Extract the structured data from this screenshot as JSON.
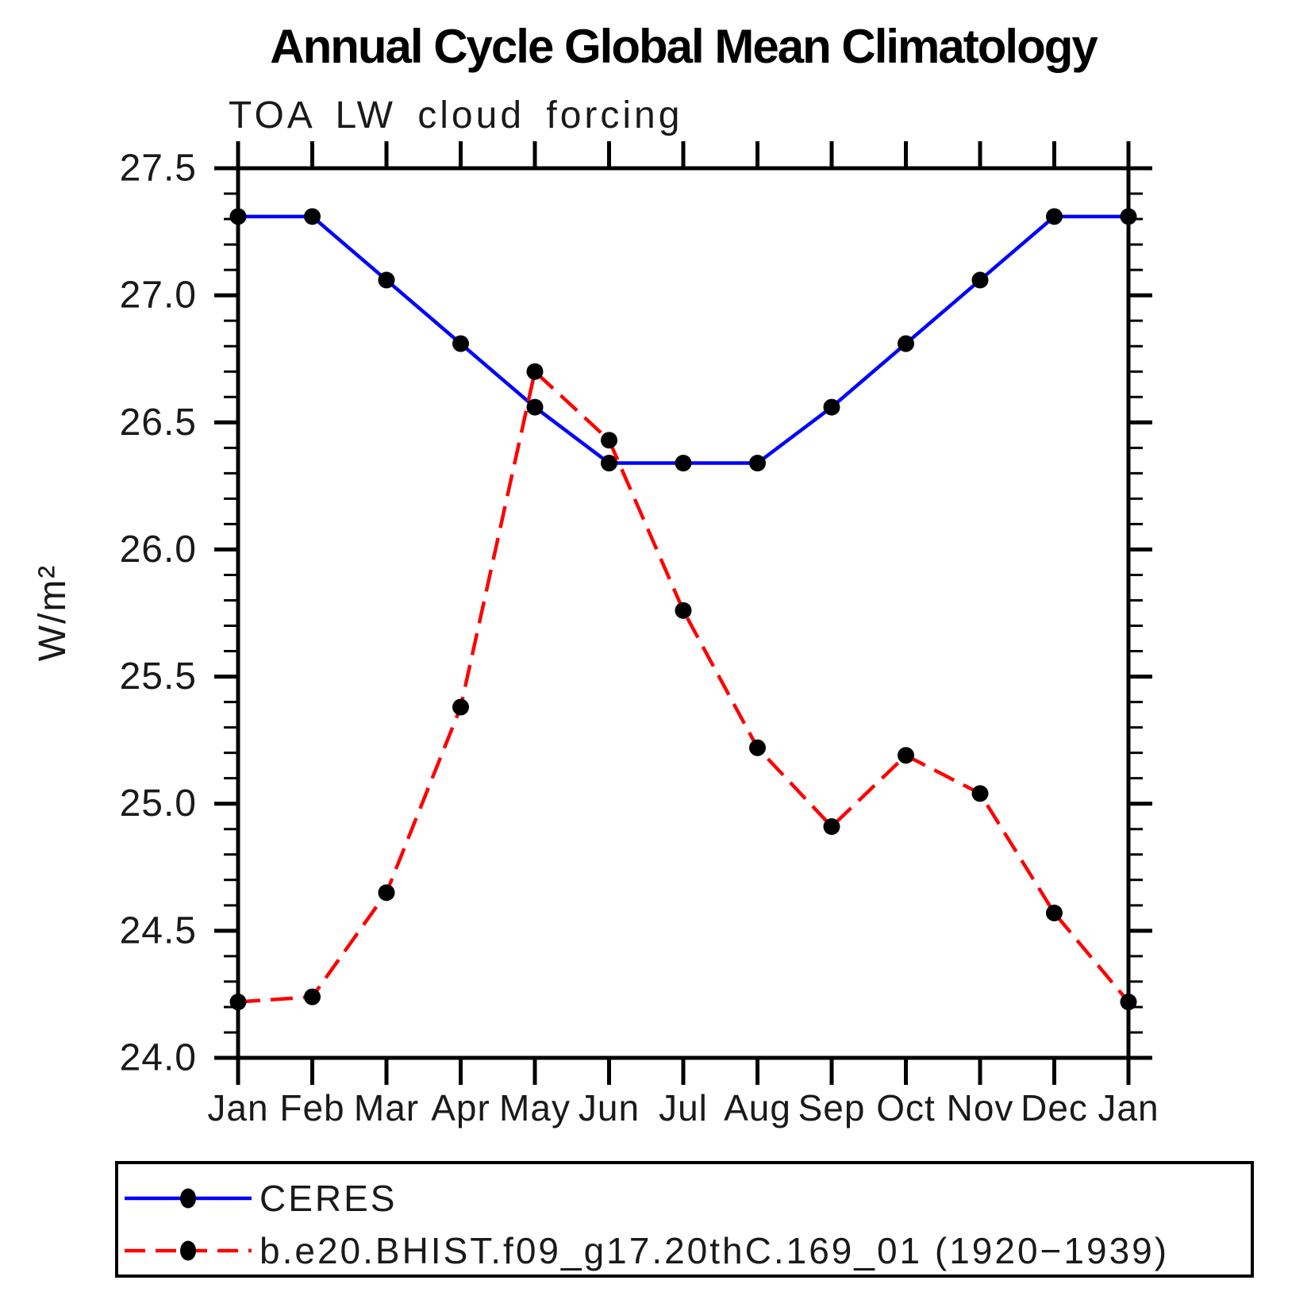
{
  "chart_data": {
    "type": "line",
    "title": "Annual Cycle Global Mean Climatology",
    "subtitle": "TOA LW cloud forcing",
    "ylabel": "W/m²",
    "xlabel": "",
    "x_tick_labels": [
      "Jan",
      "Feb",
      "Mar",
      "Apr",
      "May",
      "Jun",
      "Jul",
      "Aug",
      "Sep",
      "Oct",
      "Nov",
      "Dec",
      "Jan"
    ],
    "ylim": [
      24.0,
      27.5
    ],
    "y_major_step": 0.5,
    "y_minor_step": 0.1,
    "y_tick_labels": [
      "24.0",
      "24.5",
      "25.0",
      "25.5",
      "26.0",
      "26.5",
      "27.0",
      "27.5"
    ],
    "grid": "off",
    "legend_position": "bottom-left-box",
    "series": [
      {
        "name": "CERES",
        "color": "#0000ff",
        "line_style": "solid",
        "marker": "filled-circle",
        "marker_color": "#000000",
        "values": [
          27.31,
          27.31,
          27.06,
          26.81,
          26.56,
          26.34,
          26.34,
          26.34,
          26.56,
          26.81,
          27.06,
          27.31,
          27.31
        ]
      },
      {
        "name": "b.e20.BHIST.f09_g17.20thC.169_01 (1920−1939)",
        "color": "#ff0000",
        "line_style": "dashed",
        "marker": "filled-circle",
        "marker_color": "#000000",
        "values": [
          24.22,
          24.24,
          24.65,
          25.38,
          26.7,
          26.43,
          25.76,
          25.22,
          24.91,
          25.19,
          25.04,
          24.57,
          24.22
        ]
      }
    ]
  }
}
